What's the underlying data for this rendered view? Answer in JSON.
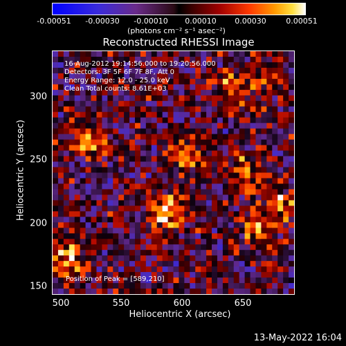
{
  "colorbar": {
    "ticks": [
      "-0.00051",
      "-0.00030",
      "-0.00010",
      "0.00010",
      "0.00030",
      "0.00051"
    ],
    "units": "(photons cm⁻² s⁻¹ asec⁻²)"
  },
  "chart_data": {
    "type": "heatmap",
    "title": "Reconstructed RHESSI Image",
    "xlabel": "Heliocentric X (arcsec)",
    "ylabel": "Heliocentric Y (arcsec)",
    "xlim": [
      500,
      688
    ],
    "ylim": [
      148,
      332
    ],
    "x_ticks": [
      "500",
      "550",
      "600",
      "650"
    ],
    "y_ticks": [
      "150",
      "200",
      "250",
      "300"
    ],
    "color_range": [
      -0.00051,
      0.00051
    ],
    "annotations": [
      "16-Aug-2012 19:14:56.000 to 19:20:56.000",
      "Detectors: 3F 5F 6F 7F 8F, Att 0",
      "Energy Range: 12.0 - 25.0 keV",
      "Clean    Total counts: 8.61E+03"
    ],
    "peak_label": "Position of Peak = [589,210]",
    "peak": [
      589,
      210
    ],
    "bright_sources": [
      {
        "x": 589,
        "y": 210,
        "value": 0.00051
      },
      {
        "x": 530,
        "y": 265,
        "value": 0.0004
      },
      {
        "x": 510,
        "y": 175,
        "value": 0.00042
      },
      {
        "x": 605,
        "y": 255,
        "value": 0.0003
      },
      {
        "x": 660,
        "y": 200,
        "value": 0.00038
      },
      {
        "x": 650,
        "y": 240,
        "value": 0.00032
      },
      {
        "x": 680,
        "y": 215,
        "value": 0.0003
      },
      {
        "x": 640,
        "y": 305,
        "value": 0.00028
      },
      {
        "x": 670,
        "y": 310,
        "value": 0.00022
      }
    ]
  },
  "footer": {
    "timestamp": "13-May-2022 16:04"
  }
}
